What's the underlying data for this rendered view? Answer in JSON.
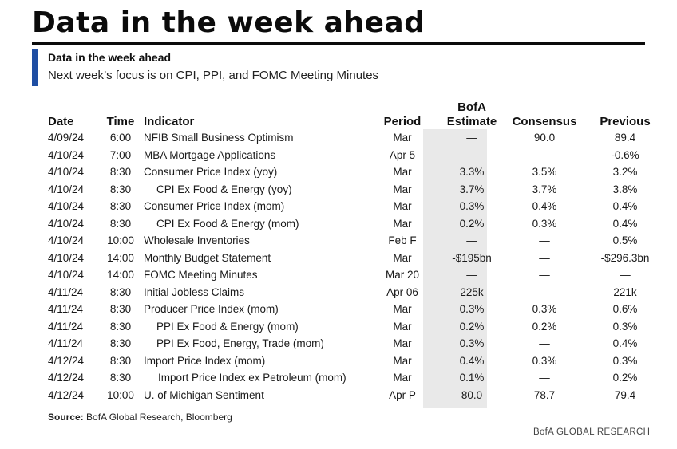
{
  "header": {
    "title": "Data in the week ahead",
    "subtitle": "Data in the week ahead",
    "description": "Next week’s focus is on CPI, PPI, and FOMC Meeting Minutes"
  },
  "columns": {
    "date": "Date",
    "time": "Time",
    "indicator": "Indicator",
    "period": "Period",
    "estimate_line1": "BofA",
    "estimate_line2": "Estimate",
    "consensus": "Consensus",
    "previous": "Previous"
  },
  "rows": [
    {
      "date": "4/09/24",
      "time": "6:00",
      "indicator": "NFIB Small Business Optimism",
      "period": "Mar",
      "estimate": "—",
      "consensus": "90.0",
      "previous": "89.4",
      "indent": 0
    },
    {
      "date": "4/10/24",
      "time": "7:00",
      "indicator": "MBA Mortgage Applications",
      "period": "Apr 5",
      "estimate": "—",
      "consensus": "—",
      "previous": "-0.6%",
      "indent": 0
    },
    {
      "date": "4/10/24",
      "time": "8:30",
      "indicator": "Consumer Price Index (yoy)",
      "period": "Mar",
      "estimate": "3.3%",
      "consensus": "3.5%",
      "previous": "3.2%",
      "indent": 0
    },
    {
      "date": "4/10/24",
      "time": "8:30",
      "indicator": "CPI Ex Food & Energy (yoy)",
      "period": "Mar",
      "estimate": "3.7%",
      "consensus": "3.7%",
      "previous": "3.8%",
      "indent": 1
    },
    {
      "date": "4/10/24",
      "time": "8:30",
      "indicator": "Consumer Price Index (mom)",
      "period": "Mar",
      "estimate": "0.3%",
      "consensus": "0.4%",
      "previous": "0.4%",
      "indent": 0
    },
    {
      "date": "4/10/24",
      "time": "8:30",
      "indicator": "CPI Ex Food & Energy (mom)",
      "period": "Mar",
      "estimate": "0.2%",
      "consensus": "0.3%",
      "previous": "0.4%",
      "indent": 1
    },
    {
      "date": "4/10/24",
      "time": "10:00",
      "indicator": "Wholesale Inventories",
      "period": "Feb F",
      "estimate": "—",
      "consensus": "—",
      "previous": "0.5%",
      "indent": 0
    },
    {
      "date": "4/10/24",
      "time": "14:00",
      "indicator": "Monthly Budget Statement",
      "period": "Mar",
      "estimate": "-$195bn",
      "consensus": "—",
      "previous": "-$296.3bn",
      "indent": 0
    },
    {
      "date": "4/10/24",
      "time": "14:00",
      "indicator": "FOMC Meeting Minutes",
      "period": "Mar 20",
      "estimate": "—",
      "consensus": "—",
      "previous": "—",
      "indent": 0
    },
    {
      "date": "4/11/24",
      "time": "8:30",
      "indicator": "Initial Jobless Claims",
      "period": "Apr 06",
      "estimate": "225k",
      "consensus": "—",
      "previous": "221k",
      "indent": 0
    },
    {
      "date": "4/11/24",
      "time": "8:30",
      "indicator": "Producer Price Index (mom)",
      "period": "Mar",
      "estimate": "0.3%",
      "consensus": "0.3%",
      "previous": "0.6%",
      "indent": 0
    },
    {
      "date": "4/11/24",
      "time": "8:30",
      "indicator": "PPI Ex Food & Energy (mom)",
      "period": "Mar",
      "estimate": "0.2%",
      "consensus": "0.2%",
      "previous": "0.3%",
      "indent": 1
    },
    {
      "date": "4/11/24",
      "time": "8:30",
      "indicator": "PPI Ex Food, Energy, Trade (mom)",
      "period": "Mar",
      "estimate": "0.3%",
      "consensus": "—",
      "previous": "0.4%",
      "indent": 1
    },
    {
      "date": "4/12/24",
      "time": "8:30",
      "indicator": "Import Price Index (mom)",
      "period": "Mar",
      "estimate": "0.4%",
      "consensus": "0.3%",
      "previous": "0.3%",
      "indent": 0
    },
    {
      "date": "4/12/24",
      "time": "8:30",
      "indicator": "Import Price Index ex Petroleum (mom)",
      "period": "Mar",
      "estimate": "0.1%",
      "consensus": "—",
      "previous": "0.2%",
      "indent": 2
    },
    {
      "date": "4/12/24",
      "time": "10:00",
      "indicator": "U. of Michigan Sentiment",
      "period": "Apr P",
      "estimate": "80.0",
      "consensus": "78.7",
      "previous": "79.4",
      "indent": 0
    }
  ],
  "footer": {
    "source_label": "Source:",
    "source_text": " BofA Global Research, Bloomberg",
    "brand": "BofA GLOBAL RESEARCH"
  },
  "colors": {
    "accent": "#1f4ea3",
    "estimate_column_bg": "#e9e9e9"
  }
}
